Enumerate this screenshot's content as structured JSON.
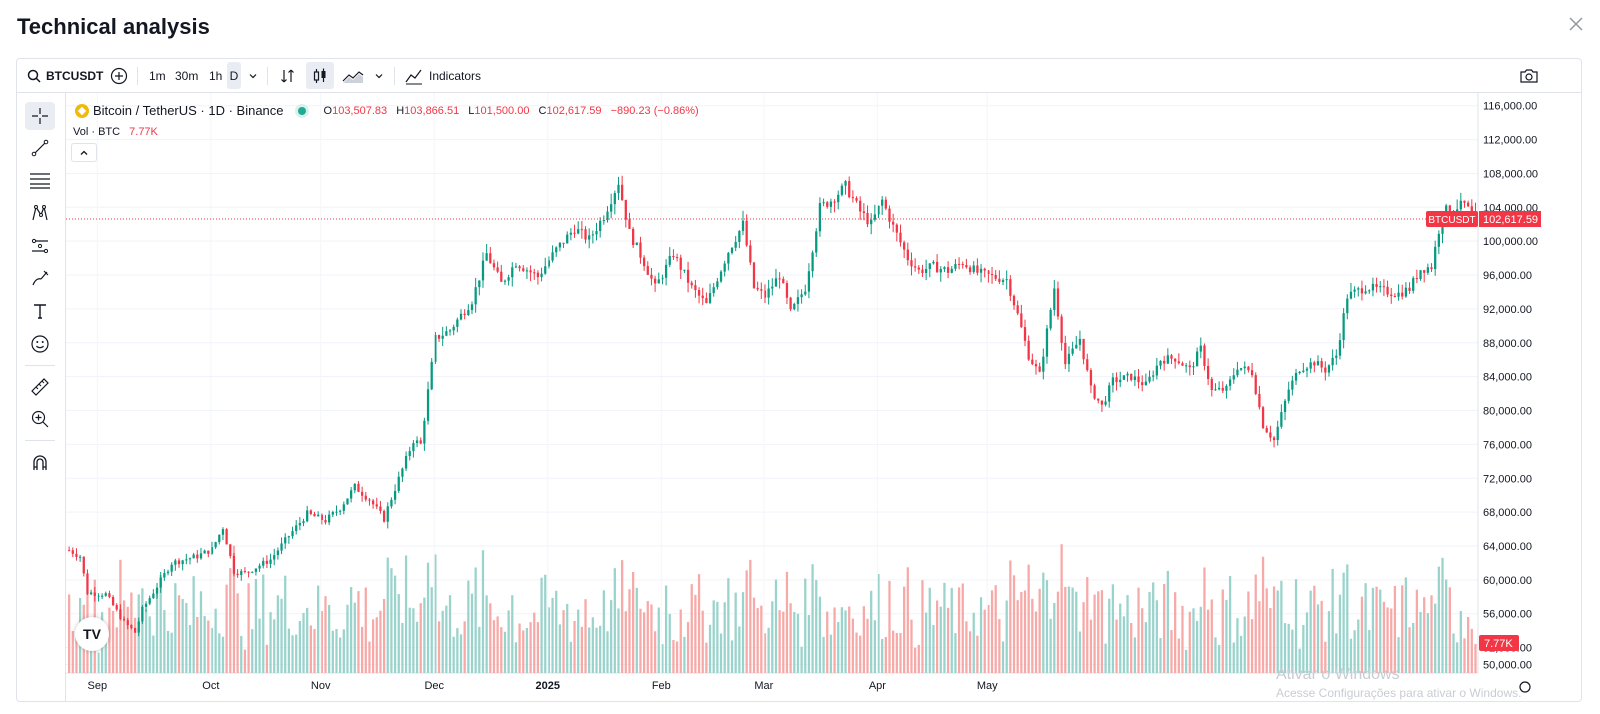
{
  "window": {
    "title": "Technical analysis"
  },
  "toolbar": {
    "symbol": "BTCUSDT",
    "intervals": [
      "1m",
      "30m",
      "1h",
      "D"
    ],
    "indicators_label": "Indicators"
  },
  "legend": {
    "title": "Bitcoin / TetherUS · 1D · Binance",
    "open_key": "O",
    "open": "103,507.83",
    "high_key": "H",
    "high": "103,866.51",
    "low_key": "L",
    "low": "101,500.00",
    "close_key": "C",
    "close": "102,617.59",
    "change": "−890.23 (−0.86%)",
    "volume_label": "Vol · BTC",
    "volume_value": "7.77K"
  },
  "colors": {
    "up": "#089981",
    "down": "#f23645",
    "up_vol": "#9ad3cc",
    "down_vol": "#f7a9a7"
  },
  "chart_data": {
    "type": "candlestick",
    "symbol": "BTCUSDT",
    "y_ticks": [
      "116,000.00",
      "112,000.00",
      "108,000.00",
      "104,000.00",
      "100,000.00",
      "96,000.00",
      "92,000.00",
      "88,000.00",
      "84,000.00",
      "80,000.00",
      "76,000.00",
      "72,000.00",
      "68,000.00",
      "64,000.00",
      "60,000.00",
      "56,000.00",
      "52,000.00",
      "50,000.00"
    ],
    "ylim": [
      49000,
      117500
    ],
    "x_ticks": [
      "Sep",
      "Oct",
      "Nov",
      "Dec",
      "2025",
      "Feb",
      "Mar",
      "Apr",
      "May"
    ],
    "last_price_label": "BTCUSDT",
    "last_price": "102,617.59",
    "last_price_value": 102617.59,
    "volume_last_label": "7.77K",
    "trend_anchors": [
      [
        0,
        63500
      ],
      [
        3,
        62800
      ],
      [
        5,
        58500
      ],
      [
        10,
        58300
      ],
      [
        15,
        55000
      ],
      [
        18,
        53800
      ],
      [
        20,
        56500
      ],
      [
        28,
        62000
      ],
      [
        35,
        62800
      ],
      [
        39,
        63600
      ],
      [
        42,
        66200
      ],
      [
        45,
        61000
      ],
      [
        48,
        60800
      ],
      [
        55,
        62400
      ],
      [
        60,
        65200
      ],
      [
        65,
        67800
      ],
      [
        70,
        67000
      ],
      [
        74,
        68500
      ],
      [
        78,
        71000
      ],
      [
        82,
        69500
      ],
      [
        86,
        67200
      ],
      [
        87,
        68500
      ],
      [
        94,
        76500
      ],
      [
        96,
        76000
      ],
      [
        100,
        88500
      ],
      [
        104,
        89500
      ],
      [
        110,
        93000
      ],
      [
        114,
        98500
      ],
      [
        118,
        95000
      ],
      [
        122,
        97500
      ],
      [
        128,
        95800
      ],
      [
        133,
        99000
      ],
      [
        138,
        101500
      ],
      [
        142,
        100200
      ],
      [
        146,
        103000
      ],
      [
        150,
        107000
      ],
      [
        153,
        101000
      ],
      [
        157,
        97500
      ],
      [
        160,
        94500
      ],
      [
        165,
        98500
      ],
      [
        170,
        94500
      ],
      [
        174,
        92500
      ],
      [
        180,
        98800
      ],
      [
        184,
        102000
      ],
      [
        187,
        94500
      ],
      [
        190,
        93500
      ],
      [
        194,
        96000
      ],
      [
        197,
        91500
      ],
      [
        201,
        94500
      ],
      [
        205,
        104000
      ],
      [
        208,
        104800
      ],
      [
        212,
        106500
      ],
      [
        216,
        103500
      ],
      [
        219,
        102000
      ],
      [
        222,
        104800
      ],
      [
        225,
        101700
      ],
      [
        229,
        98000
      ],
      [
        232,
        96500
      ],
      [
        236,
        97000
      ],
      [
        240,
        96500
      ],
      [
        244,
        97500
      ],
      [
        248,
        96300
      ],
      [
        252,
        95800
      ],
      [
        256,
        95500
      ],
      [
        259,
        91300
      ],
      [
        262,
        86500
      ],
      [
        265,
        84200
      ],
      [
        269,
        94500
      ],
      [
        272,
        85500
      ],
      [
        276,
        88500
      ],
      [
        279,
        82500
      ],
      [
        282,
        80500
      ],
      [
        285,
        83500
      ],
      [
        290,
        84000
      ],
      [
        294,
        83000
      ],
      [
        298,
        86000
      ],
      [
        302,
        86200
      ],
      [
        306,
        84800
      ],
      [
        309,
        87300
      ],
      [
        312,
        82300
      ],
      [
        316,
        82500
      ],
      [
        319,
        85200
      ],
      [
        323,
        84500
      ],
      [
        326,
        78300
      ],
      [
        329,
        76500
      ],
      [
        333,
        82500
      ],
      [
        336,
        85000
      ],
      [
        340,
        85700
      ],
      [
        343,
        84800
      ],
      [
        346,
        86500
      ],
      [
        349,
        93500
      ],
      [
        354,
        94600
      ],
      [
        358,
        94200
      ],
      [
        363,
        93800
      ],
      [
        366,
        94400
      ],
      [
        369,
        96700
      ],
      [
        372,
        97000
      ],
      [
        375,
        103500
      ],
      [
        378,
        103900
      ],
      [
        381,
        104300
      ],
      [
        384,
        102600
      ]
    ]
  }
}
